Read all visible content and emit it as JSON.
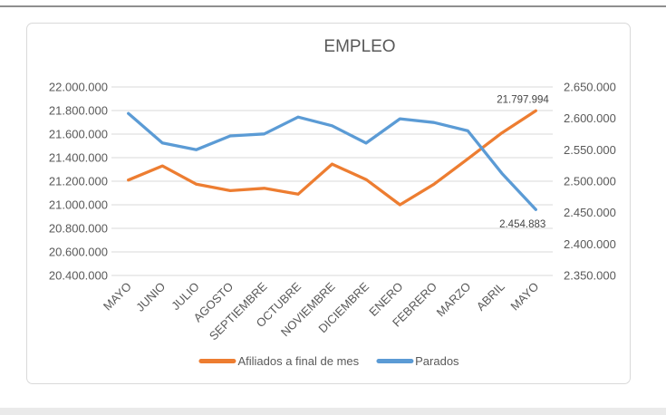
{
  "page": {
    "background": "#ffffff",
    "top_line_color": "#8f8f8f",
    "bottom_band_color": "#eaeaea"
  },
  "chart_data": {
    "type": "line",
    "title": "EMPLEO",
    "categories": [
      "MAYO",
      "JUNIO",
      "JULIO",
      "AGOSTO",
      "SEPTIEMBRE",
      "OCTUBRE",
      "NOVIEMBRE",
      "DICIEMBRE",
      "ENERO",
      "FEBRERO",
      "MARZO",
      "ABRIL",
      "MAYO"
    ],
    "series": [
      {
        "name": "Afiliados a final de mes",
        "axis": "left",
        "color": "#ED7D31",
        "values": [
          21210000,
          21330000,
          21175000,
          21120000,
          21140000,
          21090000,
          21345000,
          21215000,
          21000000,
          21175000,
          21390000,
          21610000,
          21797994
        ]
      },
      {
        "name": "Parados",
        "axis": "right",
        "color": "#5B9BD5",
        "values": [
          2607850,
          2561067,
          2550237,
          2572121,
          2575285,
          2602054,
          2588257,
          2560718,
          2599443,
          2593449,
          2580138,
          2512718,
          2454883
        ]
      }
    ],
    "left_axis": {
      "min": 20400000,
      "max": 22000000,
      "step": 200000,
      "tick_labels": [
        "22.000.000",
        "21.800.000",
        "21.600.000",
        "21.400.000",
        "21.200.000",
        "21.000.000",
        "20.800.000",
        "20.600.000",
        "20.400.000"
      ]
    },
    "right_axis": {
      "min": 2350000,
      "max": 2650000,
      "step": 50000,
      "tick_labels": [
        "2.650.000",
        "2.600.000",
        "2.550.000",
        "2.500.000",
        "2.450.000",
        "2.400.000",
        "2.350.000"
      ]
    },
    "data_labels": [
      {
        "series_index": 0,
        "category_index": 12,
        "text": "21.797.994",
        "placement": "above"
      },
      {
        "series_index": 1,
        "category_index": 12,
        "text": "2.454.883",
        "placement": "below"
      }
    ],
    "legend": {
      "position": "bottom",
      "entries": [
        "Afiliados a final de mes",
        "Parados"
      ]
    },
    "grid": true,
    "styles": {
      "gridline_color": "#d9d9d9",
      "frame_border_color": "#d9d9d9",
      "axis_text_color": "#595959",
      "title_color": "#595959",
      "data_label_color": "#444444"
    }
  }
}
